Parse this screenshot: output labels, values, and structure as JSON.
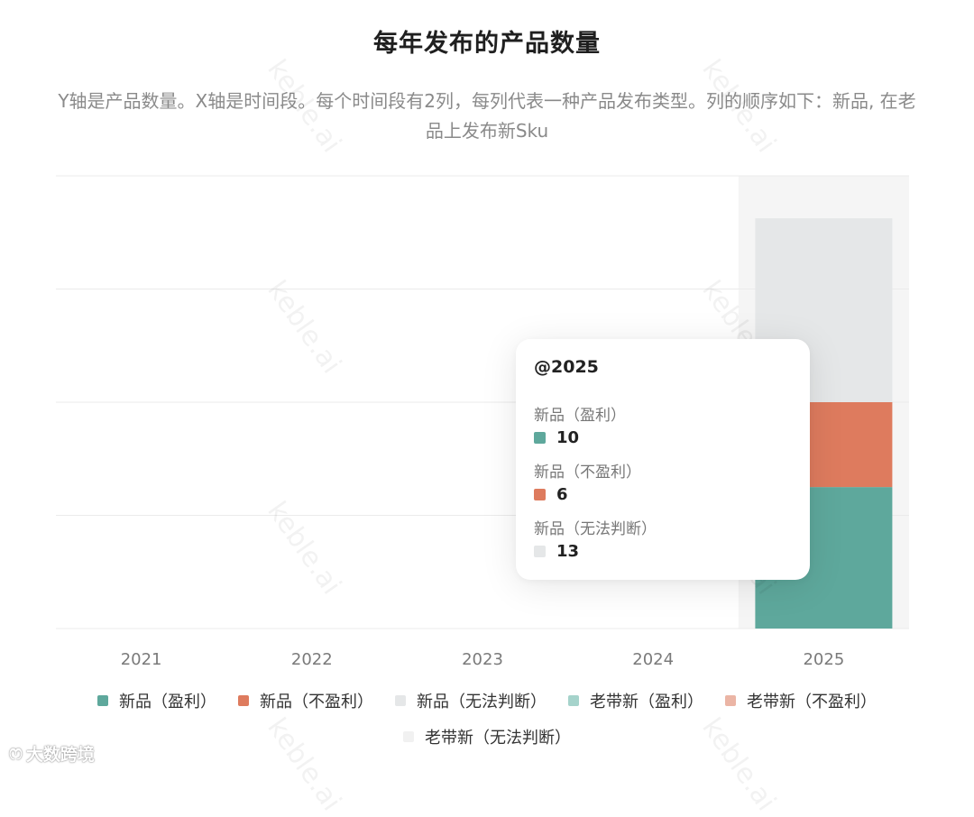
{
  "colors": {
    "profit": "#5ea89c",
    "loss": "#de7b5e",
    "unknown": "#e5e7e8",
    "old_profit": "#a5d3cb",
    "old_loss": "#ebb5a5",
    "old_unknown": "#f1f1f1",
    "highlight_band": "#f5f5f5",
    "grid": "#ebebeb"
  },
  "watermark": "keble.ai",
  "brand": {
    "icon": "wechat-like-icon",
    "text": "大数跨境"
  },
  "chart_data": {
    "type": "bar",
    "stacked": true,
    "title": "每年发布的产品数量",
    "subtitle": "Y轴是产品数量。X轴是时间段。每个时间段有2列，每列代表一种产品发布类型。列的顺序如下：新品, 在老品上发布新Sku",
    "categories": [
      "2021",
      "2022",
      "2023",
      "2024",
      "2025"
    ],
    "highlighted_category": "2025",
    "series": [
      {
        "name": "新品（盈利）",
        "stack": "新品",
        "color": "#5ea89c",
        "values": [
          0,
          0,
          0,
          0,
          10
        ]
      },
      {
        "name": "新品（不盈利）",
        "stack": "新品",
        "color": "#de7b5e",
        "values": [
          0,
          0,
          0,
          0,
          6
        ]
      },
      {
        "name": "新品（无法判断）",
        "stack": "新品",
        "color": "#e5e7e8",
        "values": [
          0,
          0,
          0,
          0,
          13
        ]
      },
      {
        "name": "老带新（盈利）",
        "stack": "老带新",
        "color": "#a5d3cb",
        "values": [
          0,
          0,
          0,
          0,
          0
        ]
      },
      {
        "name": "老带新（不盈利）",
        "stack": "老带新",
        "color": "#ebb5a5",
        "values": [
          0,
          0,
          0,
          0,
          0
        ]
      },
      {
        "name": "老带新（无法判断）",
        "stack": "老带新",
        "color": "#f1f1f1",
        "values": [
          0,
          0,
          0,
          0,
          0
        ]
      }
    ],
    "ylim": [
      0,
      32
    ],
    "grid": true,
    "legend_position": "bottom",
    "tooltip": {
      "title": "@2025",
      "items": [
        {
          "label": "新品（盈利）",
          "value": "10",
          "color": "#5ea89c"
        },
        {
          "label": "新品（不盈利）",
          "value": "6",
          "color": "#de7b5e"
        },
        {
          "label": "新品（无法判断）",
          "value": "13",
          "color": "#e5e7e8"
        }
      ]
    }
  }
}
